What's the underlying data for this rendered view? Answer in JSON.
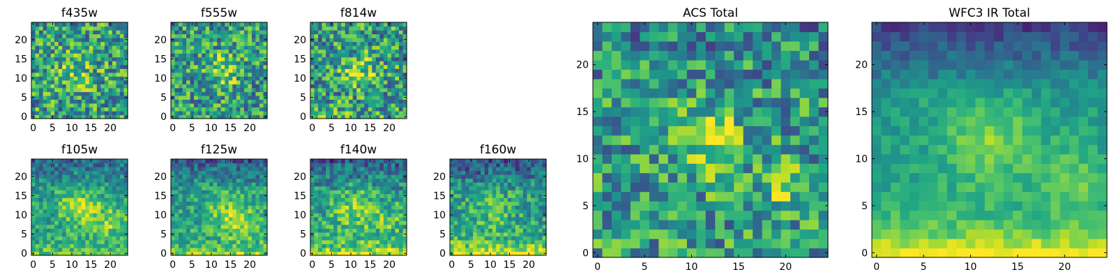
{
  "chart_data": [
    {
      "type": "heatmap",
      "title": "f435w",
      "rows": 25,
      "cols": 25,
      "x_ticks": [
        0,
        5,
        10,
        15,
        20
      ],
      "y_ticks": [
        0,
        5,
        10,
        15,
        20
      ],
      "colormap": "viridis",
      "profile": {
        "center": [
          11,
          11
        ],
        "width": 4,
        "strength": 0.18,
        "noise": 0.34,
        "bottom": 0.0,
        "top": 0.0,
        "extra": []
      }
    },
    {
      "type": "heatmap",
      "title": "f555w",
      "rows": 25,
      "cols": 25,
      "x_ticks": [
        0,
        5,
        10,
        15,
        20
      ],
      "y_ticks": [
        0,
        5,
        10,
        15,
        20
      ],
      "colormap": "viridis",
      "profile": {
        "center": [
          13,
          12
        ],
        "width": 3,
        "strength": 0.3,
        "noise": 0.32,
        "bottom": 0.0,
        "top": 0.0,
        "extra": []
      }
    },
    {
      "type": "heatmap",
      "title": "f814w",
      "rows": 25,
      "cols": 25,
      "x_ticks": [
        0,
        5,
        10,
        15,
        20
      ],
      "y_ticks": [
        0,
        5,
        10,
        15,
        20
      ],
      "colormap": "viridis",
      "profile": {
        "center": [
          12,
          12
        ],
        "width": 3,
        "strength": 0.28,
        "noise": 0.34,
        "bottom": 0.08,
        "top": 0.0,
        "extra": []
      }
    },
    {
      "type": "heatmap",
      "title": "f105w",
      "rows": 25,
      "cols": 25,
      "x_ticks": [
        0,
        5,
        10,
        15,
        20
      ],
      "y_ticks": [
        0,
        5,
        10,
        15,
        20
      ],
      "colormap": "viridis",
      "profile": {
        "center": [
          12,
          12
        ],
        "width": 4,
        "strength": 0.3,
        "noise": 0.2,
        "bottom": 0.2,
        "top": -0.2,
        "extra": [
          [
            20,
            8,
            3,
            0.25
          ]
        ]
      }
    },
    {
      "type": "heatmap",
      "title": "f125w",
      "rows": 25,
      "cols": 25,
      "x_ticks": [
        0,
        5,
        10,
        15,
        20
      ],
      "y_ticks": [
        0,
        5,
        10,
        15,
        20
      ],
      "colormap": "viridis",
      "profile": {
        "center": [
          14,
          11
        ],
        "width": 4,
        "strength": 0.25,
        "noise": 0.2,
        "bottom": 0.25,
        "top": -0.25,
        "extra": [
          [
            19,
            7,
            3,
            0.2
          ]
        ]
      }
    },
    {
      "type": "heatmap",
      "title": "f140w",
      "rows": 25,
      "cols": 25,
      "x_ticks": [
        0,
        5,
        10,
        15,
        20
      ],
      "y_ticks": [
        0,
        5,
        10,
        15,
        20
      ],
      "colormap": "viridis",
      "profile": {
        "center": [
          11,
          11
        ],
        "width": 4,
        "strength": 0.25,
        "noise": 0.22,
        "bottom": 0.35,
        "top": -0.25,
        "extra": [
          [
            20,
            9,
            3,
            0.15
          ]
        ]
      }
    },
    {
      "type": "heatmap",
      "title": "f160w",
      "rows": 25,
      "cols": 25,
      "x_ticks": [
        0,
        5,
        10,
        15,
        20
      ],
      "y_ticks": [
        0,
        5,
        10,
        15,
        20
      ],
      "colormap": "viridis",
      "profile": {
        "center": [
          11,
          11
        ],
        "width": 4,
        "strength": 0.15,
        "noise": 0.22,
        "bottom": 0.4,
        "top": -0.3,
        "extra": []
      }
    },
    {
      "type": "heatmap",
      "title": "ACS Total",
      "rows": 25,
      "cols": 25,
      "x_ticks": [
        0,
        5,
        10,
        15,
        20
      ],
      "y_ticks": [
        0,
        5,
        10,
        15,
        20
      ],
      "colormap": "viridis",
      "profile": {
        "center": [
          12,
          12
        ],
        "width": 2.5,
        "strength": 0.35,
        "noise": 0.3,
        "bottom": 0.0,
        "top": -0.1,
        "extra": [
          [
            20,
            7,
            1.5,
            0.35
          ]
        ]
      }
    },
    {
      "type": "heatmap",
      "title": "WFC3 IR Total",
      "rows": 25,
      "cols": 25,
      "x_ticks": [
        0,
        5,
        10,
        15,
        20
      ],
      "y_ticks": [
        0,
        5,
        10,
        15,
        20
      ],
      "colormap": "viridis",
      "profile": {
        "center": [
          12,
          12
        ],
        "width": 3.5,
        "strength": 0.25,
        "noise": 0.1,
        "bottom": 0.45,
        "top": -0.35,
        "extra": [
          [
            21,
            8,
            2.5,
            0.18
          ]
        ]
      }
    }
  ]
}
